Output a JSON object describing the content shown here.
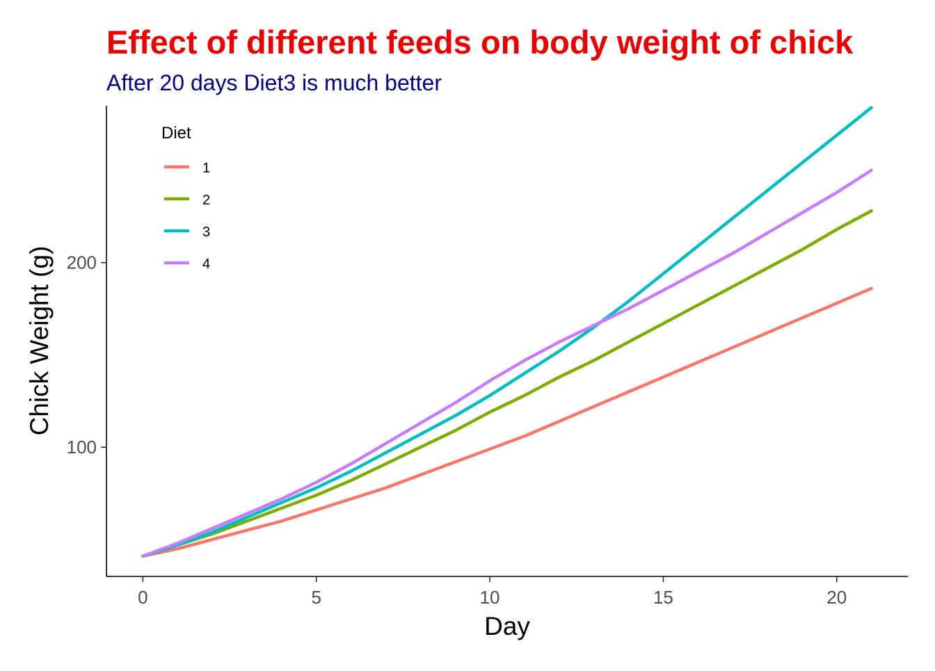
{
  "chart_data": {
    "type": "line",
    "title": "Effect of different feeds on body weight of chick",
    "subtitle": "After 20 days Diet3 is much better",
    "xlabel": "Day",
    "ylabel": "Chick Weight (g)",
    "xlim": [
      -1.05,
      22.05
    ],
    "ylim": [
      30,
      285
    ],
    "xticks": [
      0,
      5,
      10,
      15,
      20
    ],
    "yticks": [
      100,
      200
    ],
    "grid": false,
    "legend": {
      "title": "Diet",
      "position": "top-left inside"
    },
    "x": [
      0,
      1,
      2,
      3,
      4,
      5,
      6,
      7,
      8,
      9,
      10,
      11,
      12,
      13,
      14,
      15,
      16,
      17,
      18,
      19,
      20,
      21
    ],
    "series": [
      {
        "name": "1",
        "color": "#F8766D",
        "values": [
          41,
          45,
          50,
          55,
          60,
          66,
          72,
          78,
          85,
          92,
          99,
          106,
          114,
          122,
          130,
          138,
          146,
          154,
          162,
          170,
          178,
          186
        ]
      },
      {
        "name": "2",
        "color": "#7CAE00",
        "values": [
          41,
          47,
          53,
          60,
          67,
          74,
          82,
          91,
          100,
          109,
          119,
          128,
          138,
          147,
          157,
          167,
          177,
          187,
          197,
          207,
          218,
          228
        ]
      },
      {
        "name": "3",
        "color": "#00BFC4",
        "values": [
          41,
          47,
          54,
          62,
          70,
          78,
          87,
          97,
          107,
          117,
          128,
          140,
          152,
          165,
          179,
          194,
          209,
          224,
          239,
          254,
          269,
          284
        ]
      },
      {
        "name": "4",
        "color": "#C77CFF",
        "values": [
          41,
          48,
          56,
          64,
          72,
          81,
          91,
          102,
          113,
          124,
          136,
          147,
          157,
          166,
          175,
          185,
          195,
          205,
          216,
          227,
          238,
          250
        ]
      }
    ]
  },
  "colors": {
    "title": "#ee0000",
    "subtitle": "#00008b"
  }
}
